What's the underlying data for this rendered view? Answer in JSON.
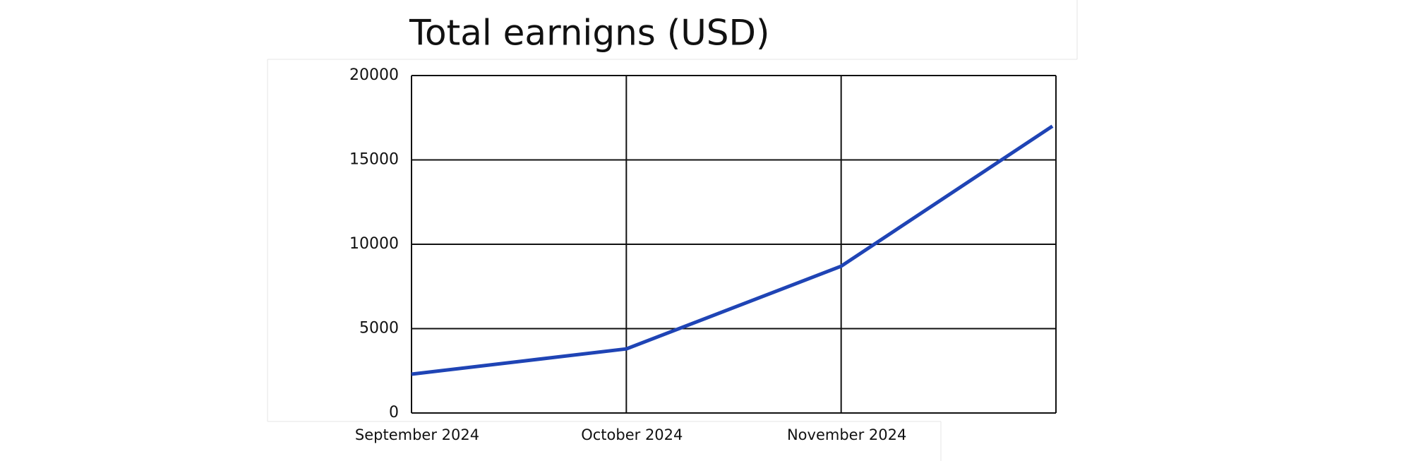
{
  "chart_data": {
    "type": "line",
    "title": "Total earnigns (USD)",
    "categories": [
      "September 2024",
      "October 2024",
      "November 2024",
      null
    ],
    "series": [
      {
        "name": null,
        "color": "#1f44b5",
        "values": [
          2300,
          3800,
          8700,
          17000
        ]
      }
    ],
    "ylim": [
      0,
      20000
    ],
    "yticks": [
      0,
      5000,
      10000,
      15000,
      20000
    ],
    "grid": true
  }
}
